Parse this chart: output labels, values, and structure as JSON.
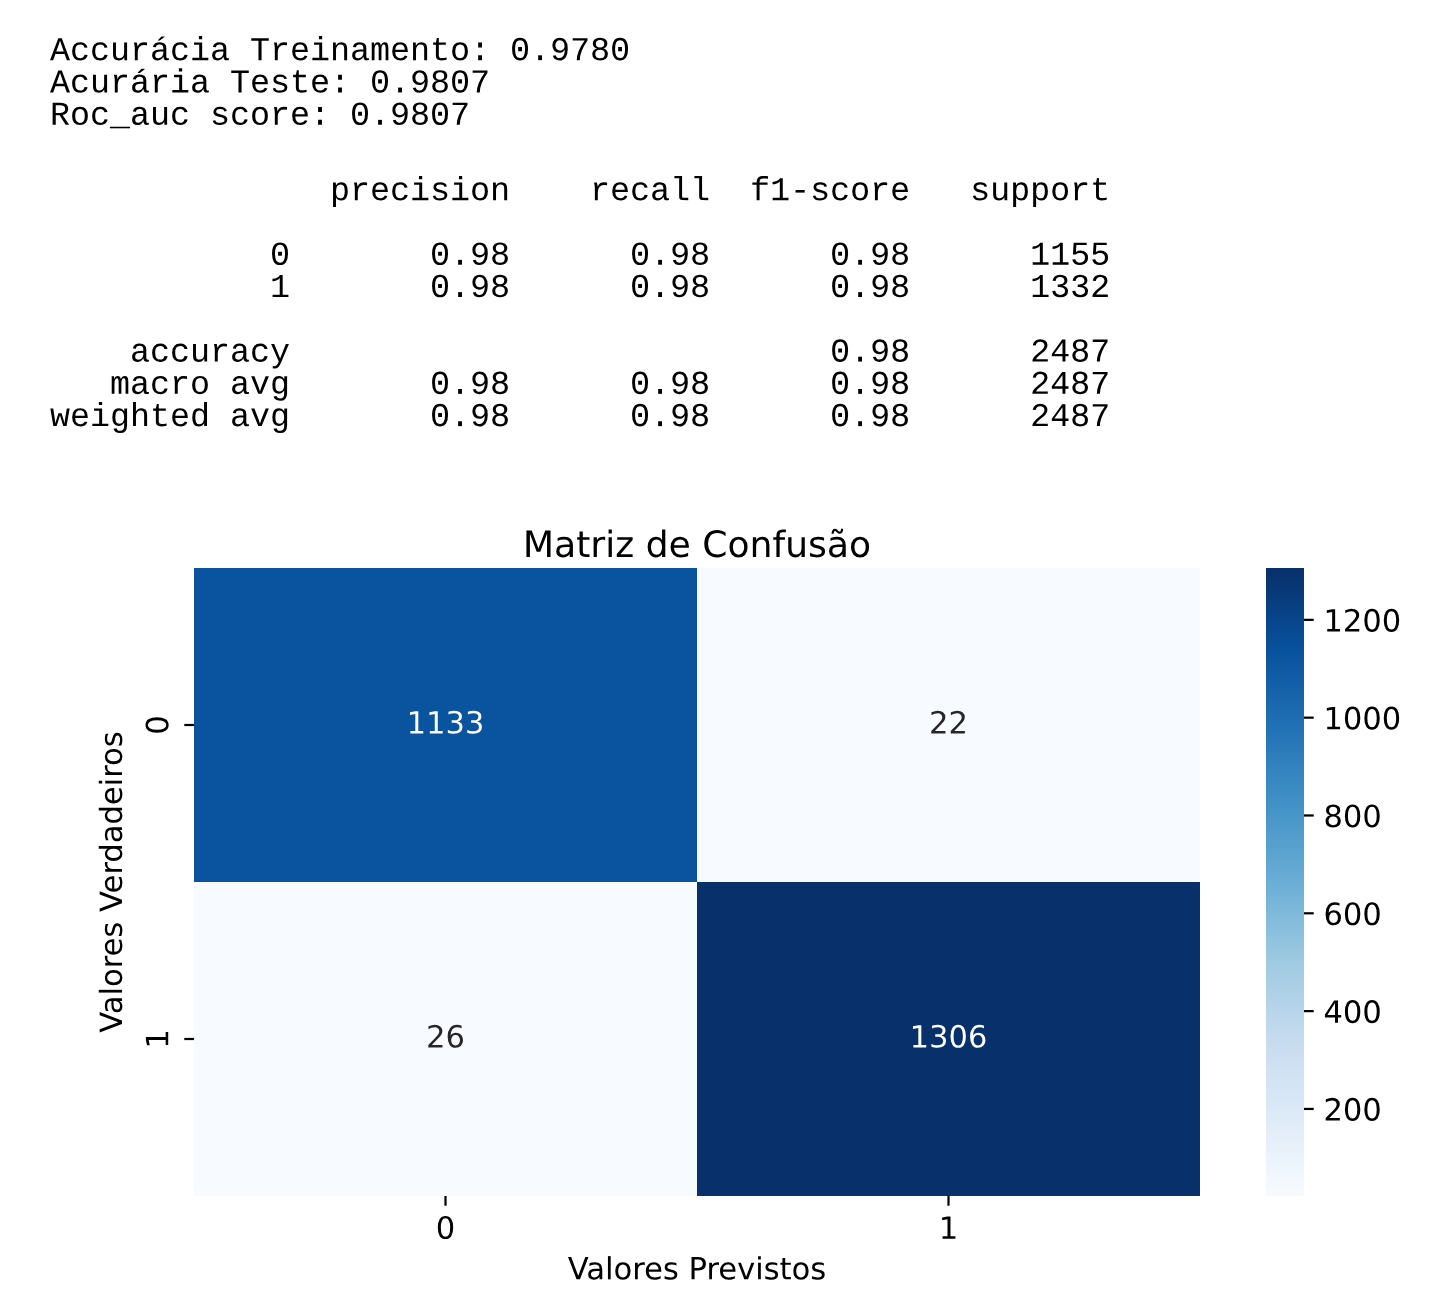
{
  "chart_data": {
    "type": "heatmap",
    "title": "Matriz de Confusão",
    "xlabel": "Valores Previstos",
    "ylabel": "Valores Verdadeiros",
    "categories": [
      "0",
      "1"
    ],
    "y_categories": [
      "0",
      "1"
    ],
    "cells": [
      [
        1133,
        22
      ],
      [
        26,
        1306
      ]
    ],
    "clim": [
      22,
      1306
    ],
    "cticks": [
      200,
      400,
      600,
      800,
      1000,
      1200
    ],
    "data_labels": true,
    "annotations": [
      "Accurácia Treinamento: 0.9780\nAcurária Teste: 0.9807\nRoc_auc score: 0.9807",
      "              precision    recall  f1-score   support\n\n           0       0.98      0.98      0.98      1155\n           1       0.98      0.98      0.98      1332\n\n    accuracy                           0.98      2487\n   macro avg       0.98      0.98      0.98      2487\nweighted avg       0.98      0.98      0.98      2487"
    ]
  }
}
